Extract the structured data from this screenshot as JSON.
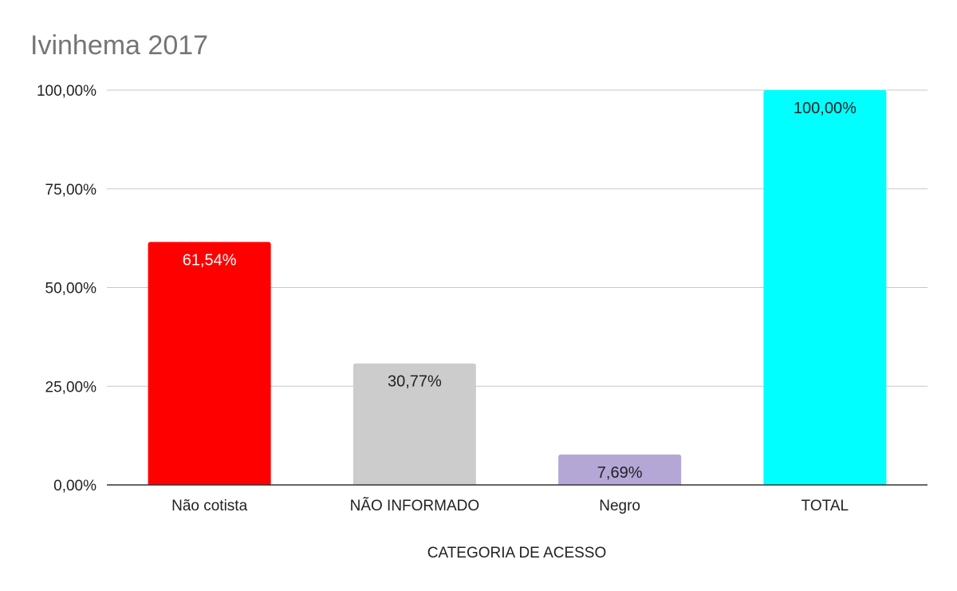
{
  "chart_data": {
    "type": "bar",
    "title": "Ivinhema 2017",
    "xlabel": "CATEGORIA DE ACESSO",
    "ylabel": "",
    "categories": [
      "Não cotista",
      "NÃO INFORMADO",
      "Negro",
      "TOTAL"
    ],
    "values": [
      61.54,
      30.77,
      7.69,
      100.0
    ],
    "value_labels": [
      "61,54%",
      "30,77%",
      "7,69%",
      "100,00%"
    ],
    "bar_colors": [
      "#ff0000",
      "#cccccc",
      "#b4a7d6",
      "#00ffff"
    ],
    "label_colors": [
      "#ffffff",
      "#222222",
      "#222222",
      "#222222"
    ],
    "ylim": [
      0,
      100
    ],
    "yticks": [
      0,
      25,
      50,
      75,
      100
    ],
    "ytick_labels": [
      "0,00%",
      "25,00%",
      "50,00%",
      "75,00%",
      "100,00%"
    ],
    "grid": true,
    "legend": "none"
  }
}
